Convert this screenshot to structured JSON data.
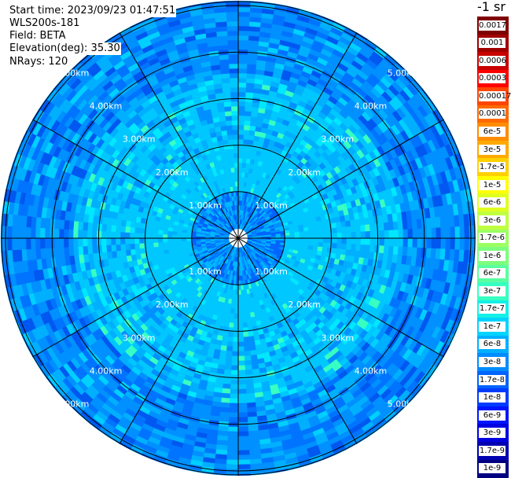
{
  "header": {
    "start_time": "Start time: 2023/09/23 01:47:51",
    "instrument": "WLS200s-181",
    "field": "Field: BETA",
    "elevation": "Elevation(deg): 35.30",
    "nrays": "NRays: 120"
  },
  "ppi": {
    "range_rings": [
      {
        "label": "1.00km"
      },
      {
        "label": "2.00km"
      },
      {
        "label": "3.00km"
      },
      {
        "label": "4.00km"
      },
      {
        "label": "5.00km"
      }
    ],
    "ring_color": "#000000",
    "label_color": "#ffffff"
  },
  "colorbar": {
    "unit": "-1 sr",
    "labels": [
      "0.0017",
      "0.001",
      "0.0006",
      "0.0003",
      "0.00017",
      "0.0001",
      "6e-5",
      "3e-5",
      "1.7e-5",
      "1e-5",
      "6e-6",
      "3e-6",
      "1.7e-6",
      "1e-6",
      "6e-7",
      "3e-7",
      "1.7e-7",
      "1e-7",
      "6e-8",
      "3e-8",
      "1.7e-8",
      "1e-8",
      "6e-9",
      "3e-9",
      "1.7e-9",
      "1e-9"
    ],
    "colors": [
      "#7f0000",
      "#a00000",
      "#c80000",
      "#ff0000",
      "#ff4500",
      "#ff6a00",
      "#ff8c00",
      "#ffaa00",
      "#ffd000",
      "#ffff00",
      "#e0ff20",
      "#c0ff40",
      "#9cff62",
      "#7dff7d",
      "#5affa0",
      "#38ffc2",
      "#14f0e6",
      "#00d4ff",
      "#00b0ff",
      "#008cff",
      "#0064ff",
      "#003cff",
      "#0014ff",
      "#0000e0",
      "#0000b0",
      "#000080"
    ]
  }
}
